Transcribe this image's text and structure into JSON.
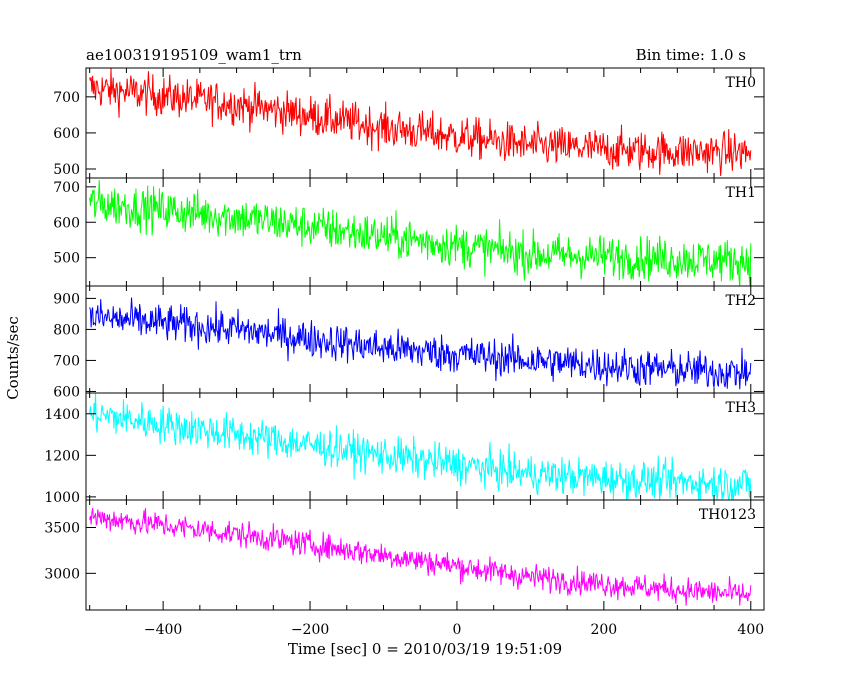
{
  "header": {
    "title": "ae100319195109_wam1_trn",
    "bin_time": "Bin time: 1.0 s"
  },
  "axes": {
    "xlabel": "Time [sec] 0 = 2010/03/19 19:51:09",
    "ylabel": "Counts/sec"
  },
  "chart_data": {
    "type": "line",
    "title": "ae100319195109_wam1_trn",
    "xlabel": "Time [sec] 0 = 2010/03/19 19:51:09",
    "ylabel": "Counts/sec",
    "xlim": [
      -505,
      418
    ],
    "x_ticks": [
      -400,
      -200,
      0,
      200,
      400
    ],
    "x_step": 1.0,
    "grid": false,
    "panels": [
      {
        "name": "TH0",
        "color": "#ff0000",
        "ylim": [
          475,
          780
        ],
        "y_ticks": [
          500,
          600,
          700
        ],
        "trend": [
          [
            -500,
            725
          ],
          [
            -300,
            680
          ],
          [
            -100,
            615
          ],
          [
            100,
            565
          ],
          [
            250,
            550
          ],
          [
            400,
            545
          ]
        ],
        "noise_sd": 28
      },
      {
        "name": "TH1",
        "color": "#00ff00",
        "ylim": [
          420,
          725
        ],
        "y_ticks": [
          500,
          600,
          700
        ],
        "trend": [
          [
            -500,
            655
          ],
          [
            -300,
            615
          ],
          [
            -100,
            560
          ],
          [
            100,
            510
          ],
          [
            250,
            500
          ],
          [
            400,
            490
          ]
        ],
        "noise_sd": 30
      },
      {
        "name": "TH2",
        "color": "#0000ff",
        "ylim": [
          595,
          940
        ],
        "y_ticks": [
          600,
          700,
          800,
          900
        ],
        "trend": [
          [
            -500,
            840
          ],
          [
            -300,
            800
          ],
          [
            -100,
            740
          ],
          [
            100,
            700
          ],
          [
            250,
            675
          ],
          [
            400,
            660
          ]
        ],
        "noise_sd": 30
      },
      {
        "name": "TH3",
        "color": "#00ffff",
        "ylim": [
          985,
          1500
        ],
        "y_ticks": [
          1000,
          1200,
          1400
        ],
        "trend": [
          [
            -500,
            1400
          ],
          [
            -300,
            1300
          ],
          [
            -100,
            1200
          ],
          [
            100,
            1110
          ],
          [
            250,
            1080
          ],
          [
            400,
            1060
          ]
        ],
        "noise_sd": 45
      },
      {
        "name": "TH0123",
        "color": "#ff00ff",
        "ylim": [
          2600,
          3800
        ],
        "y_ticks": [
          3000,
          3500
        ],
        "trend": [
          [
            -500,
            3620
          ],
          [
            -300,
            3430
          ],
          [
            -100,
            3200
          ],
          [
            100,
            2960
          ],
          [
            250,
            2850
          ],
          [
            400,
            2760
          ]
        ],
        "noise_sd": 70
      }
    ]
  }
}
